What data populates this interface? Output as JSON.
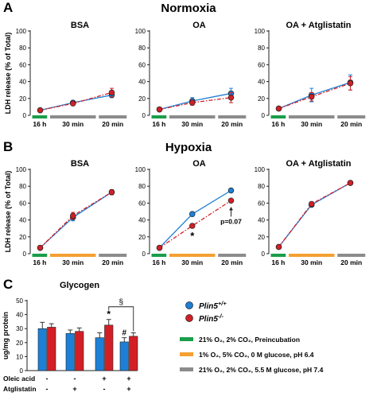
{
  "colors": {
    "wt": "#1e7fd6",
    "ko": "#d21f26",
    "preinc": "#1a9e4a",
    "hypoxia_bar": "#f5a033",
    "normoxia_bar": "#8c8c8c"
  },
  "panel_labels": {
    "a": "A",
    "b": "B",
    "c": "C"
  },
  "chart_data": [
    {
      "panel": "A",
      "type": "line",
      "row_title": "Normoxia",
      "ylabel": "LDH release (% of Total)",
      "ylim": [
        0,
        100
      ],
      "yticks": [
        0,
        20,
        40,
        60,
        80,
        100
      ],
      "x_segments": [
        "16 h",
        "30 min",
        "20 min"
      ],
      "x_segment_colors": [
        "preinc",
        "normoxia_bar",
        "normoxia_bar"
      ],
      "subplots": [
        {
          "title": "BSA",
          "series": [
            {
              "name": "Plin5+/+",
              "values": [
                6,
                15,
                24
              ],
              "errors": [
                1,
                2,
                3
              ]
            },
            {
              "name": "Plin5-/-",
              "values": [
                6,
                14,
                27
              ],
              "errors": [
                1,
                2,
                5
              ]
            }
          ]
        },
        {
          "title": "OA",
          "series": [
            {
              "name": "Plin5+/+",
              "values": [
                7,
                17,
                26
              ],
              "errors": [
                1,
                4,
                6
              ]
            },
            {
              "name": "Plin5-/-",
              "values": [
                7,
                15,
                21
              ],
              "errors": [
                1,
                3,
                6
              ]
            }
          ]
        },
        {
          "title": "OA + Atglistatin",
          "series": [
            {
              "name": "Plin5+/+",
              "values": [
                8,
                24,
                39
              ],
              "errors": [
                1,
                8,
                9
              ]
            },
            {
              "name": "Plin5-/-",
              "values": [
                8,
                22,
                38
              ],
              "errors": [
                1,
                5,
                8
              ]
            }
          ]
        }
      ]
    },
    {
      "panel": "B",
      "type": "line",
      "row_title": "Hypoxia",
      "ylabel": "LDH release (% of Total)",
      "ylim": [
        0,
        100
      ],
      "yticks": [
        0,
        20,
        40,
        60,
        80,
        100
      ],
      "x_segments": [
        "16 h",
        "30 min",
        "20 min"
      ],
      "x_segment_colors": [
        "preinc",
        "hypoxia_bar",
        "normoxia_bar"
      ],
      "subplots": [
        {
          "title": "BSA",
          "series": [
            {
              "name": "Plin5+/+",
              "values": [
                7,
                43,
                73
              ],
              "errors": [
                1,
                4,
                3
              ]
            },
            {
              "name": "Plin5-/-",
              "values": [
                7,
                45,
                73
              ],
              "errors": [
                1,
                4,
                3
              ]
            }
          ]
        },
        {
          "title": "OA",
          "series": [
            {
              "name": "Plin5+/+",
              "values": [
                7,
                47,
                75
              ],
              "errors": [
                1,
                2,
                1
              ]
            },
            {
              "name": "Plin5-/-",
              "values": [
                7,
                33,
                63
              ],
              "errors": [
                1,
                2,
                2
              ]
            }
          ],
          "annotations": {
            "star": "*",
            "pvalue": "p=0.07"
          }
        },
        {
          "title": "OA + Atglistatin",
          "series": [
            {
              "name": "Plin5+/+",
              "values": [
                8,
                58,
                84
              ],
              "errors": [
                1,
                2,
                2
              ]
            },
            {
              "name": "Plin5-/-",
              "values": [
                8,
                59,
                84
              ],
              "errors": [
                1,
                2,
                2
              ]
            }
          ]
        }
      ]
    },
    {
      "panel": "C",
      "type": "bar",
      "title": "Glycogen",
      "ylabel": "ug/mg protein",
      "ylim": [
        0,
        50
      ],
      "yticks": [
        0,
        10,
        20,
        30,
        40,
        50
      ],
      "groups": 4,
      "series": [
        {
          "name": "Plin5+/+",
          "values": [
            30,
            26.5,
            23.5,
            20.5
          ],
          "errors": [
            4.5,
            2.5,
            3.5,
            3
          ]
        },
        {
          "name": "Plin5-/-",
          "values": [
            31,
            28,
            32.5,
            24.5
          ],
          "errors": [
            2.5,
            2.5,
            4,
            2.5
          ]
        }
      ],
      "condition_rows": [
        {
          "label": "Oleic acid",
          "marks": [
            "-",
            "-",
            "+",
            "+"
          ]
        },
        {
          "label": "Atglistatin",
          "marks": [
            "-",
            "+",
            "-",
            "+"
          ]
        }
      ],
      "annotations": {
        "star": "*",
        "hash": "#",
        "section": "§"
      }
    }
  ],
  "legend": {
    "series": [
      {
        "base": "Plin5",
        "sup": "+/+",
        "color": "wt"
      },
      {
        "base": "Plin5",
        "sup": "-/-",
        "color": "ko"
      }
    ],
    "conditions": [
      {
        "color": "preinc",
        "text": "21% O₂, 2% CO₂, Preincubation"
      },
      {
        "color": "hypoxia_bar",
        "text": "  1% O₂, 5% CO₂,    0 M glucose, pH 6.4"
      },
      {
        "color": "normoxia_bar",
        "text": "21% O₂, 2% CO₂, 5.5 M glucose, pH 7.4"
      }
    ]
  }
}
